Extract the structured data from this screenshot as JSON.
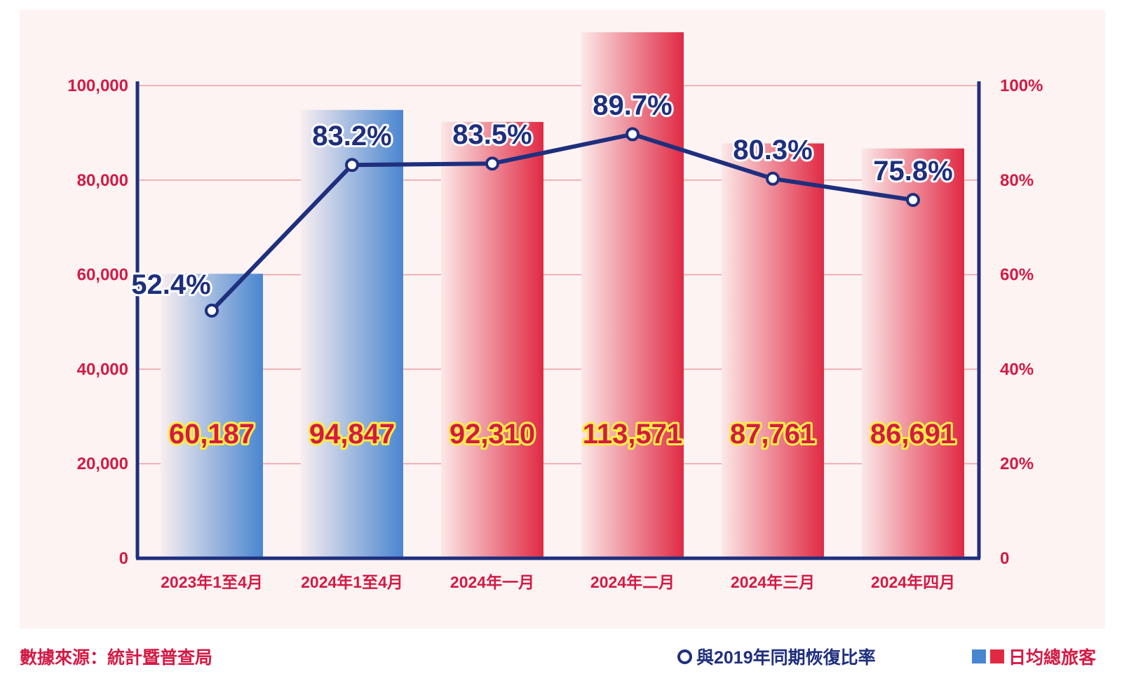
{
  "colors": {
    "plot_bg": "#fcf3f2",
    "grid": "#ef9da6",
    "axis": "#1f2f7e",
    "tick": "#d41a45",
    "line": "#1f2f7e",
    "bar_blue": "#4a86d0",
    "bar_red": "#e02a44",
    "value_fill": "#d41a45",
    "value_outline": "#ffee44"
  },
  "source": "數據來源：統計暨普查局",
  "legend": {
    "line_label": "與2019年同期恢復比率",
    "bar_label": "日均總旅客"
  },
  "chart_data": {
    "type": "bar",
    "categories": [
      "2023年1至4月",
      "2024年1至4月",
      "2024年一月",
      "2024年二月",
      "2024年三月",
      "2024年四月"
    ],
    "bar_colors": [
      "blue",
      "blue",
      "red",
      "red",
      "red",
      "red"
    ],
    "series": [
      {
        "name": "日均總旅客",
        "type": "bar",
        "axis": "left",
        "values": [
          60187,
          94847,
          92310,
          113571,
          87761,
          86691
        ],
        "value_labels": [
          "60,187",
          "94,847",
          "92,310",
          "113,571",
          "87,761",
          "86,691"
        ]
      },
      {
        "name": "與2019年同期恢復比率",
        "type": "line",
        "axis": "right",
        "values": [
          52.4,
          83.2,
          83.5,
          89.7,
          80.3,
          75.8
        ],
        "value_labels": [
          "52.4%",
          "83.2%",
          "83.5%",
          "89.7%",
          "80.3%",
          "75.8%"
        ]
      }
    ],
    "y_left": {
      "ylim": [
        0,
        100000
      ],
      "ticks": [
        0,
        20000,
        40000,
        60000,
        80000,
        100000
      ],
      "tick_labels": [
        "0",
        "20,000",
        "40,000",
        "60,000",
        "80,000",
        "100,000"
      ]
    },
    "y_right": {
      "ylim": [
        0,
        100
      ],
      "ticks": [
        0,
        20,
        40,
        60,
        80,
        100
      ],
      "tick_labels": [
        "0",
        "20%",
        "40%",
        "60%",
        "80%",
        "100%"
      ]
    },
    "grid": true,
    "legend_position": "bottom-right"
  }
}
